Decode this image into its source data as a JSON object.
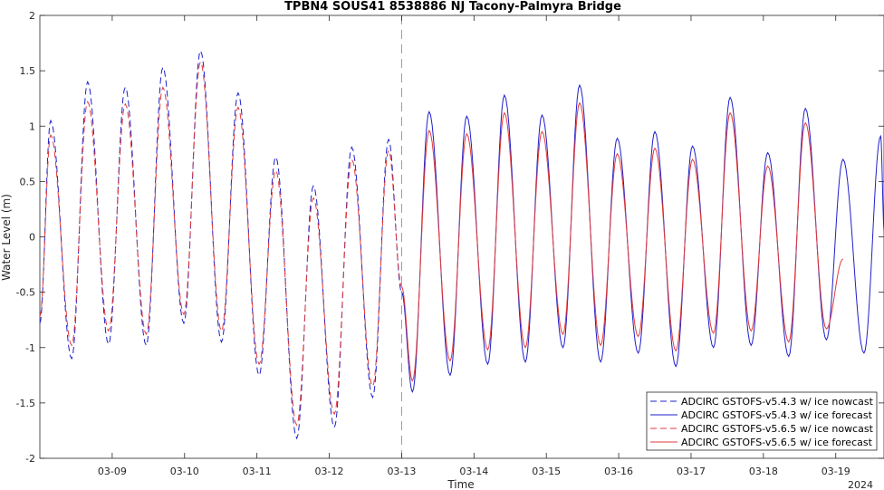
{
  "chart_data": {
    "type": "line",
    "title": "TPBN4 SOUS41 8538886 NJ Tacony-Palmyra Bridge",
    "xlabel": "Time",
    "ylabel": "Water Level (m)",
    "year_label": "2024",
    "xlim": [
      "03-08 00:00",
      "03-19 16:00"
    ],
    "ylim": [
      -2,
      2
    ],
    "x_ticks": [
      "03-09",
      "03-10",
      "03-11",
      "03-12",
      "03-13",
      "03-14",
      "03-15",
      "03-16",
      "03-17",
      "03-18",
      "03-19"
    ],
    "y_ticks": [
      "2",
      "1.5",
      "1",
      "0.5",
      "0",
      "-0.5",
      "-1",
      "-1.5",
      "-2"
    ],
    "nowcast_forecast_divider": "03-13 00:00",
    "grid": false,
    "legend_position": "bottom-right",
    "colors": {
      "v543": "#1f1fcc",
      "v565": "#e03b3b",
      "divider": "#999999"
    },
    "series": [
      {
        "name": "ADCIRC GSTOFS-v5.4.3 w/ ice nowcast",
        "color": "#1f1fcc",
        "style": "dashed",
        "time_days": [
          0.0,
          0.15,
          0.44,
          0.66,
          0.95,
          1.18,
          1.47,
          1.7,
          1.99,
          2.22,
          2.51,
          2.74,
          3.03,
          3.26,
          3.55,
          3.78,
          4.07,
          4.31,
          4.6,
          4.82,
          5.0
        ],
        "values": [
          -0.78,
          1.05,
          -1.1,
          1.4,
          -0.97,
          1.35,
          -0.98,
          1.53,
          -0.78,
          1.68,
          -0.95,
          1.3,
          -1.25,
          0.72,
          -1.82,
          0.46,
          -1.72,
          0.81,
          -1.45,
          0.88,
          -0.5
        ]
      },
      {
        "name": "ADCIRC GSTOFS-v5.4.3 w/ ice forecast",
        "color": "#1f1fcc",
        "style": "solid",
        "time_days": [
          5.0,
          5.15,
          5.38,
          5.67,
          5.9,
          6.19,
          6.42,
          6.71,
          6.94,
          7.23,
          7.46,
          7.75,
          7.98,
          8.27,
          8.5,
          8.79,
          9.02,
          9.31,
          9.54,
          9.83,
          10.06,
          10.35,
          10.58,
          10.87,
          11.1,
          11.39,
          11.62,
          11.67
        ],
        "values": [
          -0.5,
          -1.4,
          1.13,
          -1.25,
          1.09,
          -1.15,
          1.28,
          -1.13,
          1.1,
          -1.0,
          1.37,
          -1.13,
          0.89,
          -1.05,
          0.95,
          -1.17,
          0.82,
          -1.0,
          1.26,
          -0.98,
          0.76,
          -1.08,
          1.16,
          -0.93,
          0.7,
          -1.05,
          0.91,
          0.05
        ]
      },
      {
        "name": "ADCIRC GSTOFS-v5.6.5 w/ ice nowcast",
        "color": "#e03b3b",
        "style": "dashed",
        "time_days": [
          0.0,
          0.15,
          0.44,
          0.66,
          0.95,
          1.18,
          1.47,
          1.7,
          1.99,
          2.22,
          2.51,
          2.74,
          3.03,
          3.26,
          3.55,
          3.78,
          4.07,
          4.31,
          4.6,
          4.82,
          5.0
        ],
        "values": [
          -0.72,
          0.92,
          -0.98,
          1.22,
          -0.85,
          1.2,
          -0.88,
          1.35,
          -0.7,
          1.58,
          -0.85,
          1.17,
          -1.15,
          0.6,
          -1.7,
          0.35,
          -1.6,
          0.7,
          -1.35,
          0.78,
          -0.45
        ]
      },
      {
        "name": "ADCIRC GSTOFS-v5.6.5 w/ ice forecast",
        "color": "#e03b3b",
        "style": "solid",
        "time_days": [
          5.0,
          5.15,
          5.38,
          5.67,
          5.9,
          6.19,
          6.42,
          6.71,
          6.94,
          7.23,
          7.46,
          7.75,
          7.98,
          8.27,
          8.5,
          8.79,
          9.02,
          9.31,
          9.54,
          9.83,
          10.06,
          10.35,
          10.58,
          10.87,
          11.1
        ],
        "values": [
          -0.45,
          -1.3,
          0.96,
          -1.12,
          0.93,
          -1.02,
          1.12,
          -1.0,
          0.95,
          -0.88,
          1.21,
          -0.98,
          0.75,
          -0.9,
          0.8,
          -1.03,
          0.7,
          -0.87,
          1.12,
          -0.85,
          0.64,
          -0.95,
          1.03,
          -0.83,
          -0.2
        ]
      }
    ]
  }
}
